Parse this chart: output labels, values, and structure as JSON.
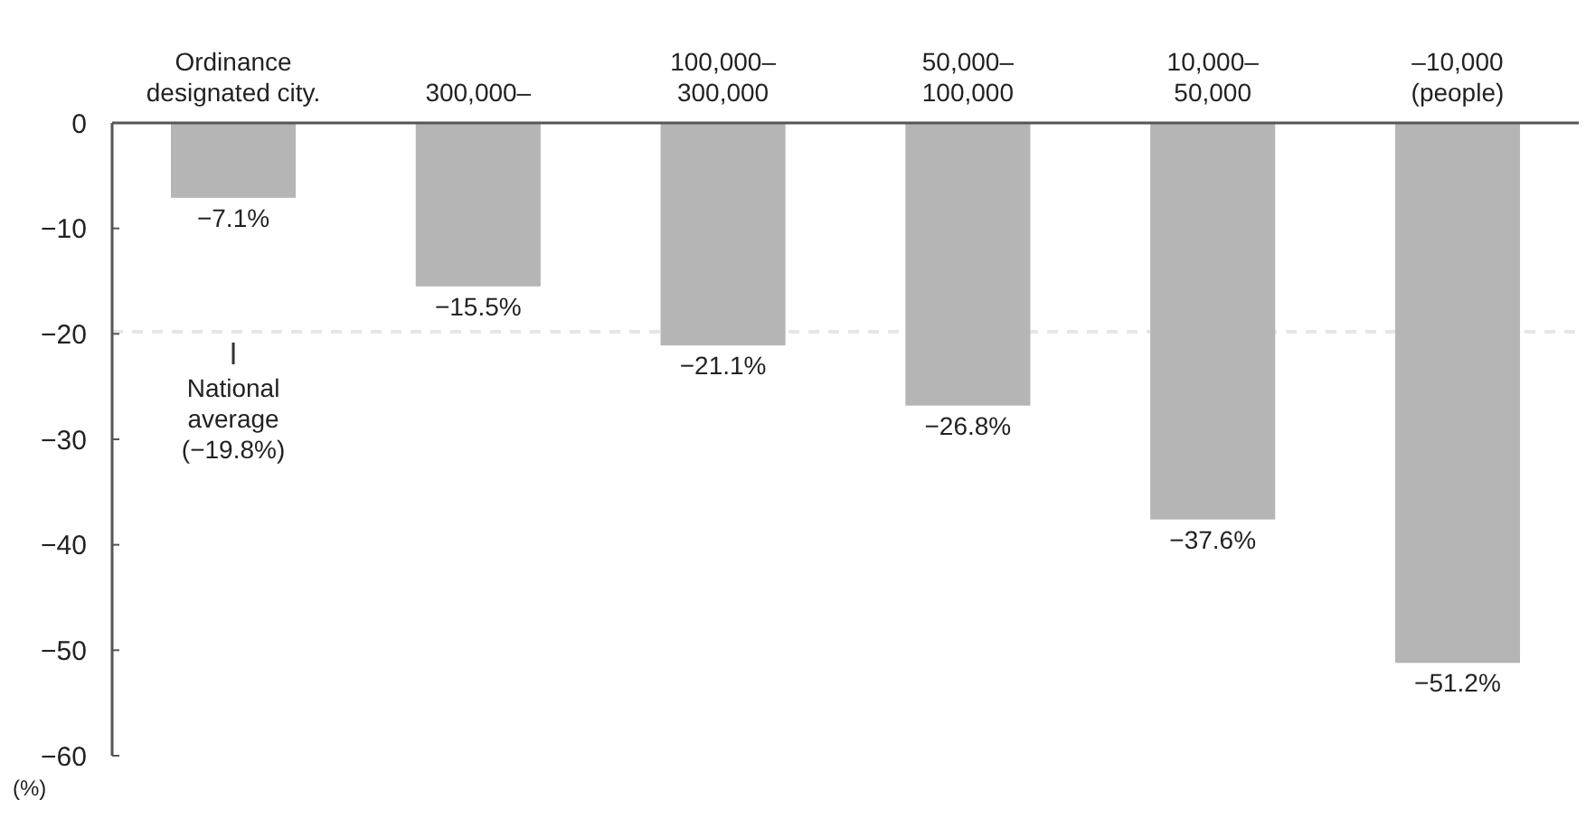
{
  "chart_data": {
    "type": "bar",
    "ylabel": "(%)",
    "categories": [
      "Ordinance\ndesignated city.",
      "300,000–",
      "100,000–\n300,000",
      "50,000–\n100,000",
      "10,000–\n50,000",
      "–10,000\n(people)"
    ],
    "values": [
      -7.1,
      -15.5,
      -21.1,
      -26.8,
      -37.6,
      -51.2
    ],
    "value_labels": [
      "−7.1%",
      "−15.5%",
      "−21.1%",
      "−26.8%",
      "−37.6%",
      "−51.2%"
    ],
    "color": "#b5b5b5",
    "ylim": [
      -60,
      0
    ],
    "yticks": [
      0,
      {
        "value": -10,
        "label": "−10"
      },
      {
        "value": -20,
        "label": "−20"
      },
      {
        "value": -30,
        "label": "−30"
      },
      {
        "value": -40,
        "label": "−40"
      },
      {
        "value": -50,
        "label": "−50"
      },
      {
        "value": -60,
        "label": "−60"
      }
    ],
    "ref_lines": [
      {
        "axis": "y",
        "value": -19.8,
        "label": "National\naverage\n(−19.8%)",
        "color": "#e6e6e6",
        "line_style": "dashed"
      }
    ],
    "grid": false
  }
}
